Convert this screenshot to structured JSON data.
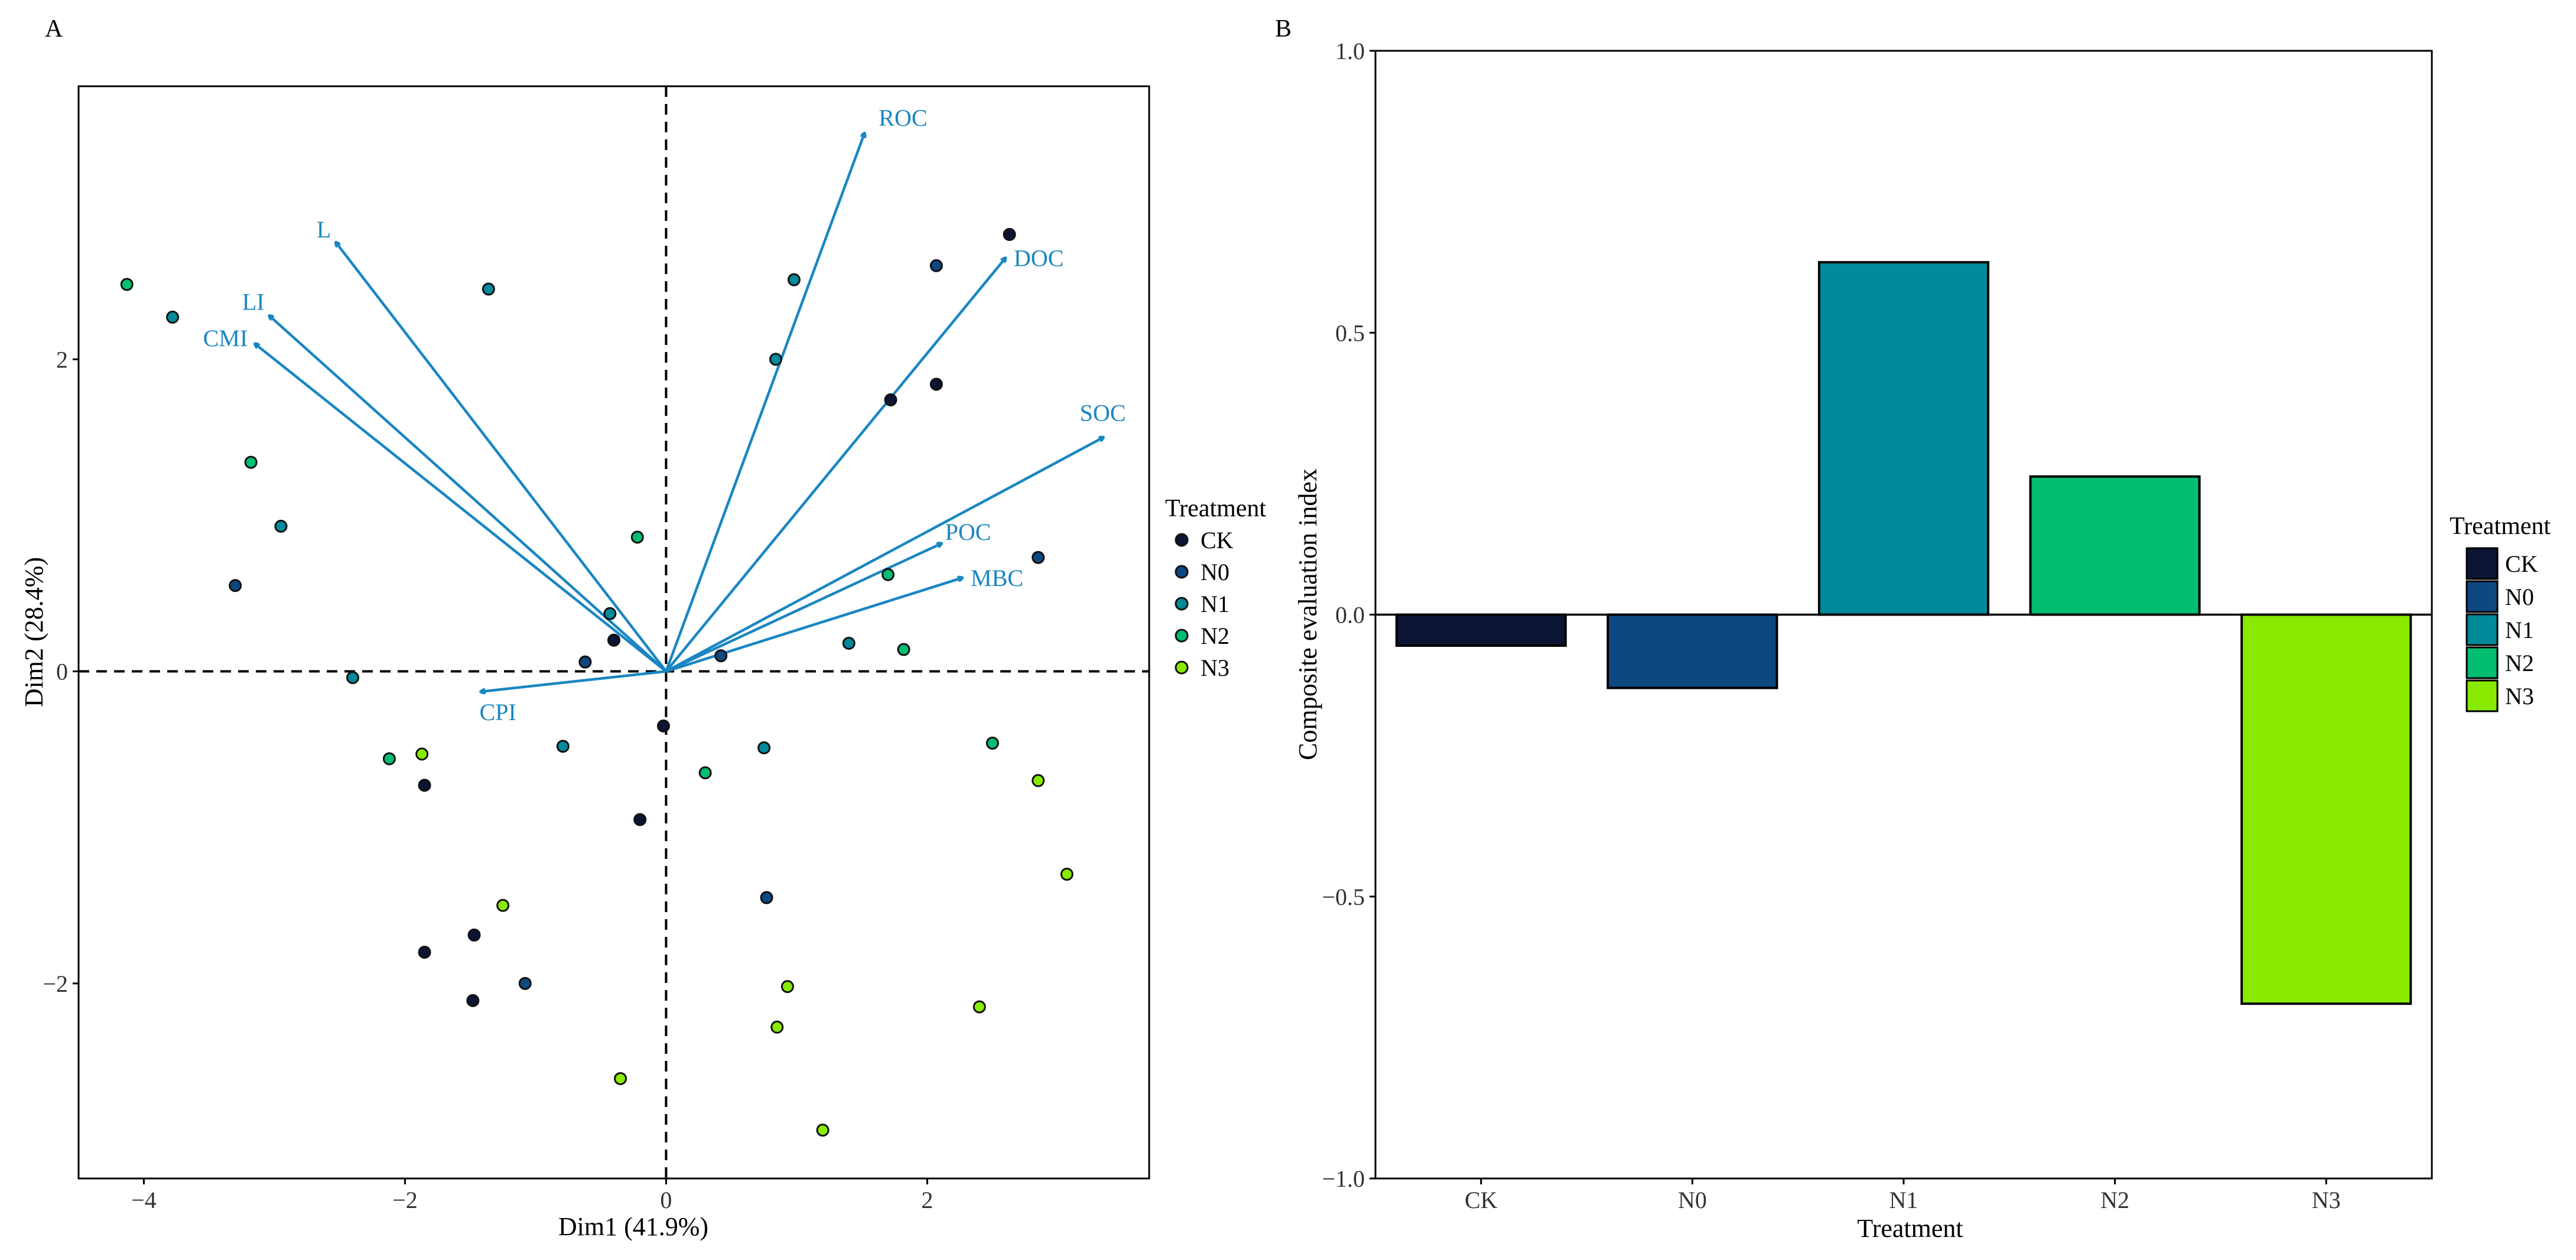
{
  "figure": {
    "panel_a_letter": "A",
    "panel_b_letter": "B"
  },
  "colors": {
    "CK": "#0b1533",
    "N0": "#0e4880",
    "N1": "#008a9a",
    "N2": "#00bd72",
    "N3": "#88ea00",
    "arrow": "#1a86c2",
    "frame": "#000000",
    "point_stroke": "#111111"
  },
  "chart_data": [
    {
      "panel": "A",
      "type": "scatter",
      "title": "",
      "xlabel": "Dim1 (41.9%)",
      "ylabel": "Dim2 (28.4%)",
      "xlim": [
        -4.5,
        3.7
      ],
      "ylim": [
        -3.25,
        3.75
      ],
      "xticks": [
        -4,
        -2,
        0,
        2
      ],
      "xtick_labels": [
        "−4",
        "−2",
        "0",
        "2"
      ],
      "yticks": [
        -2,
        0,
        2
      ],
      "ytick_labels": [
        "−2",
        "0",
        "2"
      ],
      "reference_lines": {
        "x": 0,
        "y": 0,
        "style": "dashed"
      },
      "legend": {
        "title": "Treatment",
        "placement": "right",
        "entries": [
          "CK",
          "N0",
          "N1",
          "N2",
          "N3"
        ]
      },
      "series": [
        {
          "name": "CK",
          "points": [
            [
              2.63,
              2.8
            ],
            [
              2.07,
              1.84
            ],
            [
              1.72,
              1.74
            ],
            [
              -0.4,
              0.2
            ],
            [
              -0.02,
              -0.35
            ],
            [
              -0.2,
              -0.95
            ],
            [
              -1.85,
              -0.73
            ],
            [
              -1.85,
              -1.8
            ],
            [
              -1.47,
              -1.69
            ],
            [
              -1.48,
              -2.11
            ]
          ]
        },
        {
          "name": "N0",
          "points": [
            [
              2.07,
              2.6
            ],
            [
              2.85,
              0.73
            ],
            [
              -3.3,
              0.55
            ],
            [
              -0.62,
              0.06
            ],
            [
              0.42,
              0.1
            ],
            [
              0.77,
              -1.45
            ],
            [
              -1.08,
              -2.0
            ]
          ]
        },
        {
          "name": "N1",
          "points": [
            [
              -3.78,
              2.27
            ],
            [
              -1.36,
              2.45
            ],
            [
              0.98,
              2.51
            ],
            [
              0.84,
              2.0
            ],
            [
              -2.95,
              0.93
            ],
            [
              -0.43,
              0.37
            ],
            [
              1.4,
              0.18
            ],
            [
              -2.4,
              -0.04
            ],
            [
              -0.79,
              -0.48
            ],
            [
              0.75,
              -0.49
            ]
          ]
        },
        {
          "name": "N2",
          "points": [
            [
              -4.13,
              2.48
            ],
            [
              -3.18,
              1.34
            ],
            [
              -0.22,
              0.86
            ],
            [
              1.7,
              0.62
            ],
            [
              1.82,
              0.14
            ],
            [
              -2.12,
              -0.56
            ],
            [
              0.3,
              -0.65
            ],
            [
              2.5,
              -0.46
            ]
          ]
        },
        {
          "name": "N3",
          "points": [
            [
              -1.87,
              -0.53
            ],
            [
              2.85,
              -0.7
            ],
            [
              -1.25,
              -1.5
            ],
            [
              3.07,
              -1.3
            ],
            [
              0.93,
              -2.02
            ],
            [
              2.4,
              -2.15
            ],
            [
              0.85,
              -2.28
            ],
            [
              -0.35,
              -2.61
            ],
            [
              1.2,
              -2.94
            ]
          ]
        }
      ],
      "vectors": [
        {
          "label": "ROC",
          "x": 1.52,
          "y": 3.45
        },
        {
          "label": "DOC",
          "x": 2.6,
          "y": 2.65
        },
        {
          "label": "SOC",
          "x": 3.35,
          "y": 1.5
        },
        {
          "label": "POC",
          "x": 2.11,
          "y": 0.82
        },
        {
          "label": "MBC",
          "x": 2.27,
          "y": 0.6
        },
        {
          "label": "L",
          "x": -2.53,
          "y": 2.75
        },
        {
          "label": "LI",
          "x": -3.04,
          "y": 2.28
        },
        {
          "label": "CMI",
          "x": -3.15,
          "y": 2.1
        },
        {
          "label": "CPI",
          "x": -1.42,
          "y": -0.13
        }
      ]
    },
    {
      "panel": "B",
      "type": "bar",
      "title": "",
      "xlabel": "Treatment",
      "ylabel": "Composite evaluation index",
      "categories": [
        "CK",
        "N0",
        "N1",
        "N2",
        "N3"
      ],
      "values": [
        -0.055,
        -0.13,
        0.625,
        0.245,
        -0.69
      ],
      "ylim": [
        -1.0,
        1.0
      ],
      "yticks": [
        -1.0,
        -0.5,
        0.0,
        0.5,
        1.0
      ],
      "ytick_labels": [
        "−1.0",
        "−0.5",
        "0.0",
        "0.5",
        "1.0"
      ],
      "legend": {
        "title": "Treatment",
        "placement": "right",
        "entries": [
          "CK",
          "N0",
          "N1",
          "N2",
          "N3"
        ]
      }
    }
  ]
}
